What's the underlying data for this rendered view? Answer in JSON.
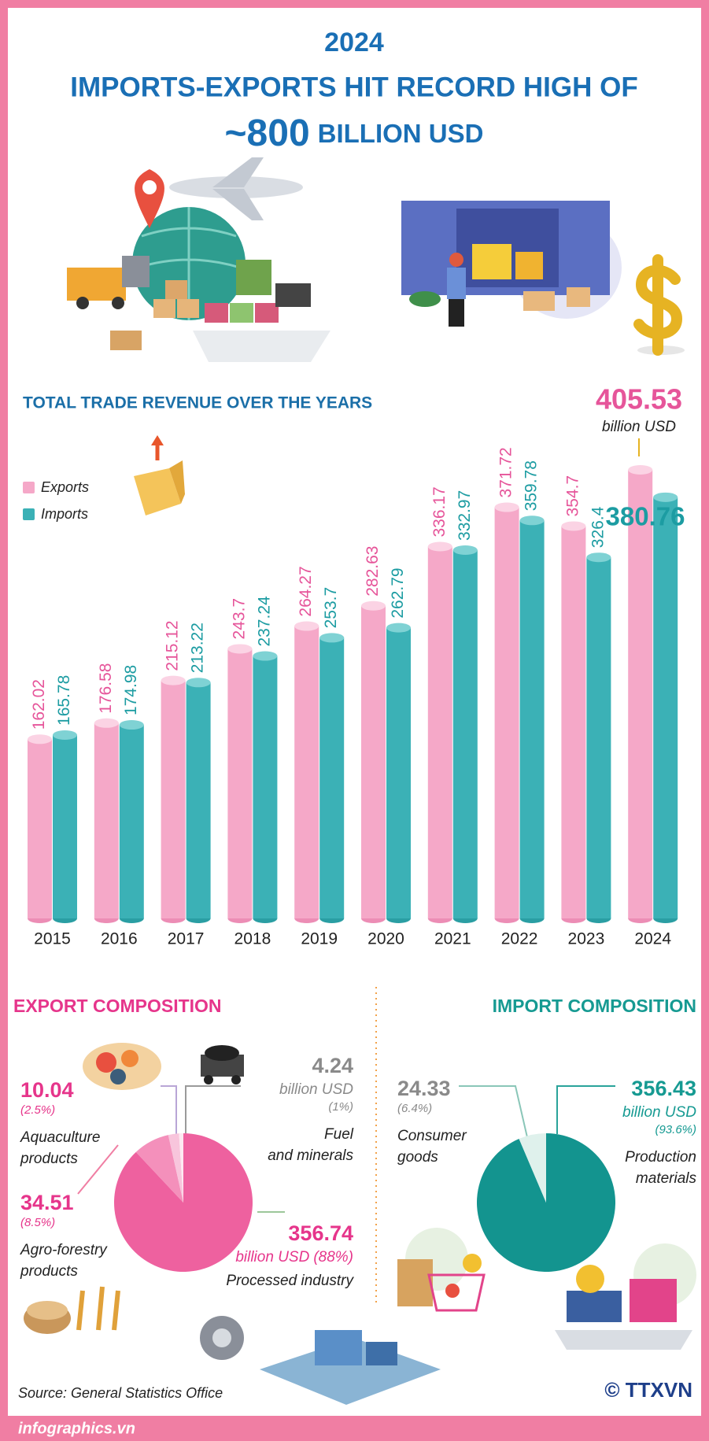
{
  "header": {
    "year": "2024",
    "title_line1": "IMPORTS-EXPORTS HIT RECORD HIGH OF",
    "title_number": "~800",
    "title_text": "BILLION USD"
  },
  "chart_data": [
    {
      "type": "bar",
      "title": "TOTAL TRADE REVENUE OVER THE YEARS",
      "categories": [
        "2015",
        "2016",
        "2017",
        "2018",
        "2019",
        "2020",
        "2021",
        "2022",
        "2023",
        "2024"
      ],
      "series": [
        {
          "name": "Exports",
          "color": "#f5a8c8",
          "values": [
            162.02,
            176.58,
            215.12,
            243.7,
            264.27,
            282.63,
            336.17,
            371.72,
            354.7,
            405.53
          ]
        },
        {
          "name": "Imports",
          "color": "#3bb1b6",
          "values": [
            165.78,
            174.98,
            213.22,
            237.24,
            253.7,
            262.79,
            332.97,
            359.78,
            326.4,
            380.76
          ]
        }
      ],
      "highlight_unit": "billion USD"
    },
    {
      "type": "pie",
      "title": "EXPORT COMPOSITION",
      "categories": [
        "Processed industry",
        "Agro-forestry\nproducts",
        "Aquaculture\nproducts",
        "Fuel\nand minerals"
      ],
      "values": [
        88,
        8.5,
        2.5,
        1
      ],
      "value_labels": [
        "(88%)",
        "(8.5%)",
        "(2.5%)",
        "(1%)"
      ],
      "amounts": [
        356.74,
        34.51,
        10.04,
        4.24
      ],
      "unit": "billion USD",
      "colors": [
        "#ee619f",
        "#f490bb",
        "#f8c5dc",
        "#fde9f1"
      ]
    },
    {
      "type": "pie",
      "title": "IMPORT COMPOSITION",
      "categories": [
        "Production\nmaterials",
        "Consumer\ngoods"
      ],
      "values": [
        93.6,
        6.4
      ],
      "value_labels": [
        "(93.6%)",
        "(6.4%)"
      ],
      "amounts": [
        356.43,
        24.33
      ],
      "unit": "billion USD",
      "colors": [
        "#13948f",
        "#dff1ec"
      ]
    }
  ],
  "source": "Source: General Statistics Office",
  "website": "infographics.vn",
  "credit": "© TTXVN"
}
